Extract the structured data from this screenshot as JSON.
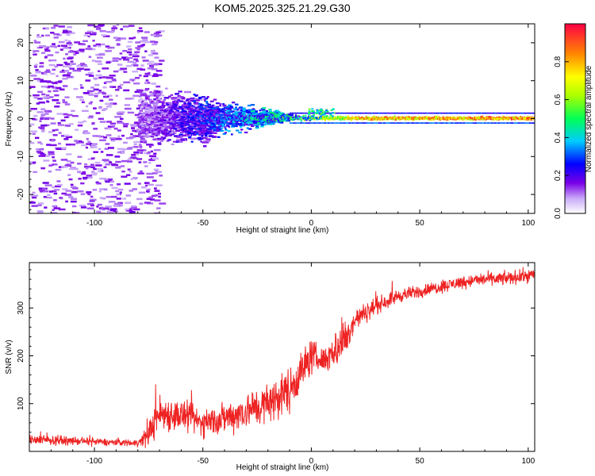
{
  "figure_title": "KOM5.2025.325.21.29.G30",
  "colors": {
    "snr_line": "#ee2222",
    "axis": "#000000",
    "background": "#ffffff"
  },
  "chart_data": [
    {
      "type": "heatmap",
      "title": "KOM5.2025.325.21.29.G30",
      "xlabel": "Height of straight line (km)",
      "ylabel": "Frequency (Hz)",
      "xlim": [
        -130,
        103
      ],
      "ylim": [
        -25,
        25
      ],
      "xticks": [
        -100,
        -50,
        0,
        50,
        100
      ],
      "yticks": [
        -20,
        -10,
        0,
        10,
        20
      ],
      "colorbar": {
        "label": "Normalized spectral amplitude",
        "range": [
          0,
          1
        ],
        "ticks": [
          0.0,
          0.2,
          0.4,
          0.6,
          0.8
        ],
        "colormap": "rainbow"
      },
      "description_points": [
        {
          "x": -110,
          "y": 0,
          "amplitude": 0.1
        },
        {
          "x": -75,
          "y": 5,
          "amplitude": 0.15
        },
        {
          "x": -50,
          "y": 0,
          "amplitude": 0.3
        },
        {
          "x": -30,
          "y": 0,
          "amplitude": 0.4
        },
        {
          "x": 0,
          "y": 0,
          "amplitude": 0.6
        },
        {
          "x": 25,
          "y": 0,
          "amplitude": 0.9
        },
        {
          "x": 50,
          "y": 0,
          "amplitude": 0.9
        },
        {
          "x": 100,
          "y": 0,
          "amplitude": 0.95
        }
      ]
    },
    {
      "type": "line",
      "title": "",
      "xlabel": "Height of straight line (km)",
      "ylabel": "SNR (v/v)",
      "xlim": [
        -130,
        103
      ],
      "ylim": [
        0,
        395
      ],
      "xticks": [
        -100,
        -50,
        0,
        50,
        100
      ],
      "yticks": [
        100,
        200,
        300
      ],
      "series": [
        {
          "name": "SNR",
          "x": [
            -130,
            -100,
            -80,
            -76,
            -70,
            -60,
            -50,
            -40,
            -30,
            -20,
            -10,
            0,
            5,
            10,
            15,
            20,
            30,
            40,
            50,
            60,
            70,
            80,
            90,
            100,
            103
          ],
          "y": [
            25,
            20,
            18,
            30,
            80,
            75,
            60,
            70,
            85,
            100,
            130,
            200,
            190,
            210,
            230,
            275,
            305,
            325,
            335,
            345,
            355,
            360,
            362,
            368,
            370
          ],
          "noise": [
            10,
            8,
            7,
            25,
            40,
            35,
            30,
            35,
            40,
            45,
            50,
            40,
            25,
            40,
            50,
            25,
            18,
            15,
            14,
            14,
            14,
            14,
            15,
            15,
            15
          ]
        }
      ]
    }
  ]
}
